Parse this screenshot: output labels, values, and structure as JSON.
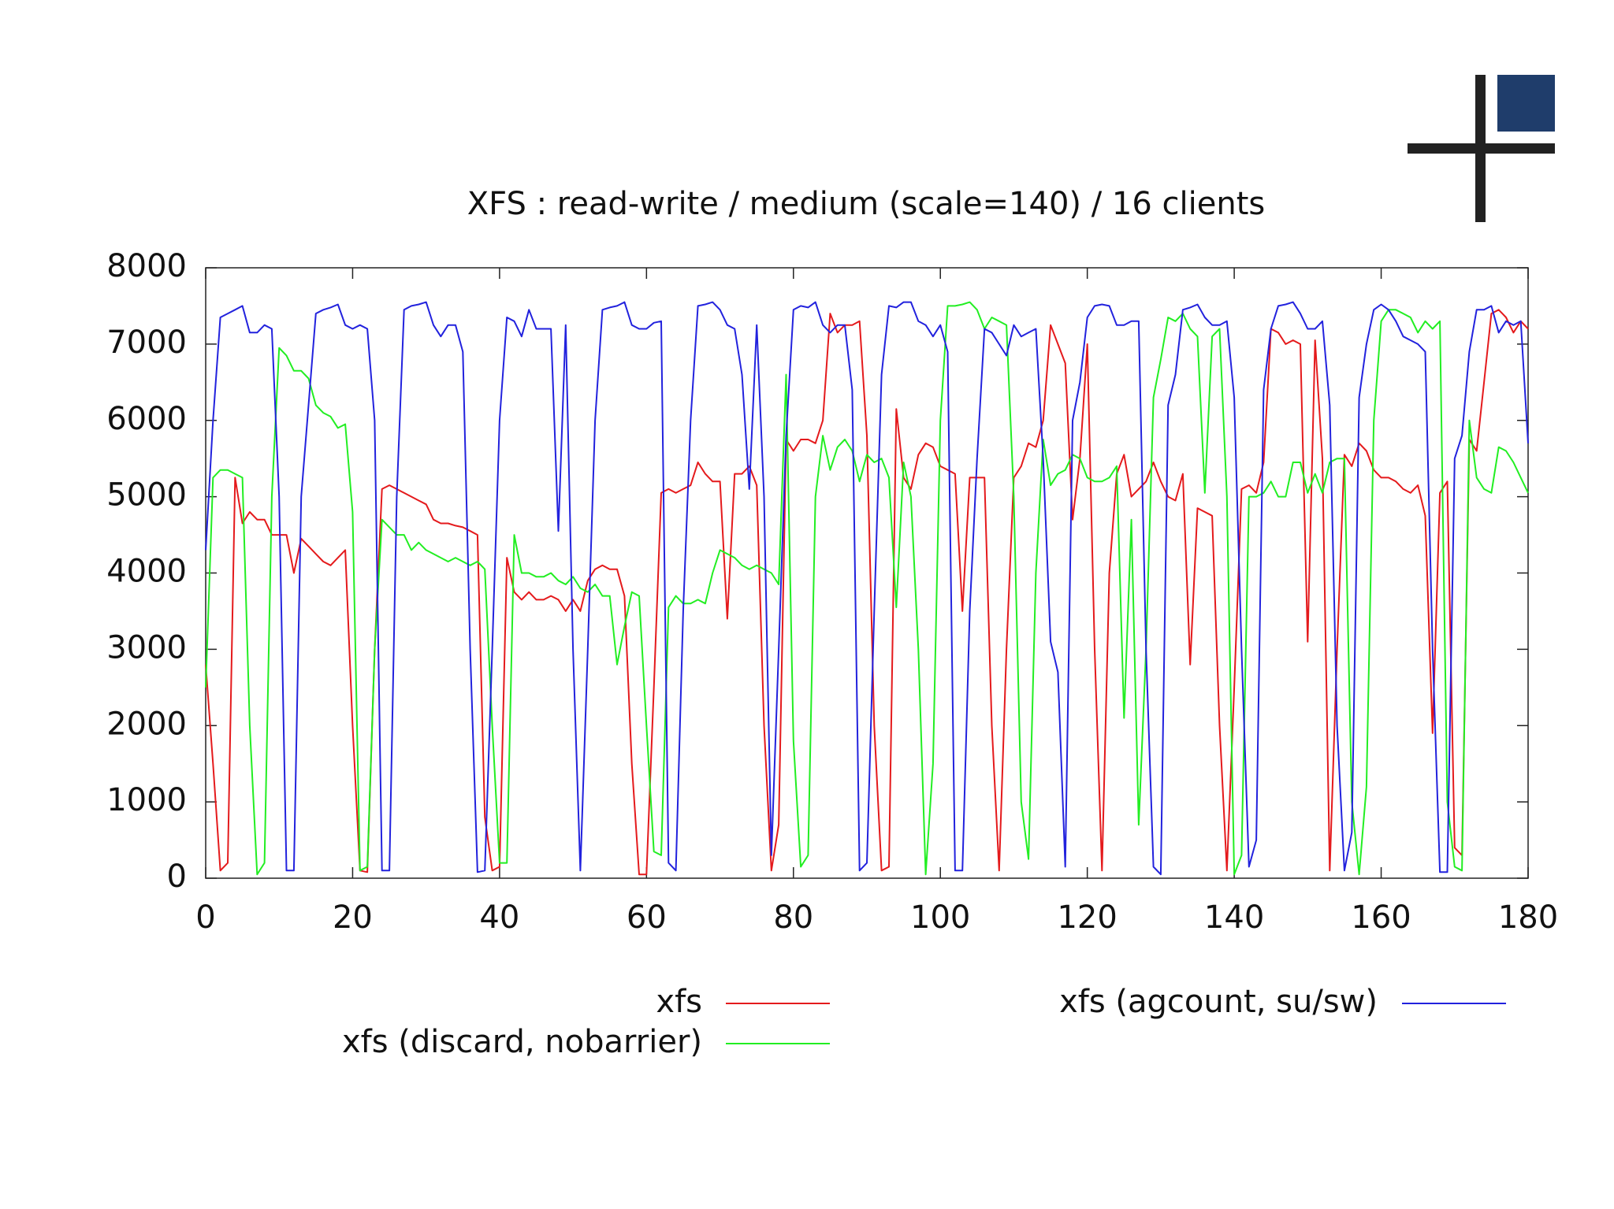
{
  "chart_data": {
    "type": "line",
    "title": "XFS : read-write / medium (scale=140) / 16 clients",
    "x": [
      0,
      1,
      2,
      3,
      4,
      5,
      6,
      7,
      8,
      9,
      10,
      11,
      12,
      13,
      14,
      15,
      16,
      17,
      18,
      19,
      20,
      21,
      22,
      23,
      24,
      25,
      26,
      27,
      28,
      29,
      30,
      31,
      32,
      33,
      34,
      35,
      36,
      37,
      38,
      39,
      40,
      41,
      42,
      43,
      44,
      45,
      46,
      47,
      48,
      49,
      50,
      51,
      52,
      53,
      54,
      55,
      56,
      57,
      58,
      59,
      60,
      61,
      62,
      63,
      64,
      65,
      66,
      67,
      68,
      69,
      70,
      71,
      72,
      73,
      74,
      75,
      76,
      77,
      78,
      79,
      80,
      81,
      82,
      83,
      84,
      85,
      86,
      87,
      88,
      89,
      90,
      91,
      92,
      93,
      94,
      95,
      96,
      97,
      98,
      99,
      100,
      101,
      102,
      103,
      104,
      105,
      106,
      107,
      108,
      109,
      110,
      111,
      112,
      113,
      114,
      115,
      116,
      117,
      118,
      119,
      120,
      121,
      122,
      123,
      124,
      125,
      126,
      127,
      128,
      129,
      130,
      131,
      132,
      133,
      134,
      135,
      136,
      137,
      138,
      139,
      140,
      141,
      142,
      143,
      144,
      145,
      146,
      147,
      148,
      149,
      150,
      151,
      152,
      153,
      154,
      155,
      156,
      157,
      158,
      159,
      160,
      161,
      162,
      163,
      164,
      165,
      166,
      167,
      168,
      169,
      170,
      171,
      172,
      173,
      174,
      175,
      176,
      177,
      178,
      179,
      180
    ],
    "series": [
      {
        "name": "xfs",
        "color": "#e41a1c",
        "values": [
          2800,
          1500,
          100,
          200,
          5250,
          4650,
          4800,
          4700,
          4700,
          4500,
          4500,
          4500,
          4000,
          4450,
          4350,
          4250,
          4150,
          4100,
          4200,
          4300,
          2000,
          100,
          80,
          3000,
          5100,
          5150,
          5100,
          5050,
          5000,
          4950,
          4900,
          4700,
          4650,
          4650,
          4620,
          4600,
          4550,
          4500,
          800,
          100,
          150,
          4200,
          3750,
          3650,
          3750,
          3650,
          3650,
          3700,
          3650,
          3500,
          3650,
          3500,
          3900,
          4050,
          4100,
          4050,
          4050,
          3700,
          1500,
          50,
          50,
          2500,
          5050,
          5100,
          5050,
          5100,
          5150,
          5450,
          5300,
          5200,
          5200,
          3400,
          5300,
          5300,
          5400,
          5150,
          2000,
          100,
          700,
          5750,
          5600,
          5750,
          5750,
          5700,
          6000,
          7400,
          7150,
          7250,
          7250,
          7300,
          5800,
          2000,
          100,
          150,
          6150,
          5250,
          5100,
          5550,
          5700,
          5650,
          5400,
          5350,
          5300,
          3500,
          5250,
          5250,
          5250,
          2000,
          100,
          3000,
          5250,
          5400,
          5700,
          5650,
          6000,
          7250,
          7000,
          6750,
          4700,
          5500,
          7000,
          3000,
          100,
          4000,
          5300,
          5550,
          5000,
          5100,
          5200,
          5450,
          5200,
          5000,
          4950,
          5300,
          2800,
          4850,
          4800,
          4750,
          2000,
          100,
          2500,
          5100,
          5150,
          5050,
          5450,
          7200,
          7150,
          7000,
          7050,
          7000,
          3100,
          7050,
          5500,
          100,
          3000,
          5550,
          5400,
          5700,
          5600,
          5350,
          5250,
          5250,
          5200,
          5100,
          5050,
          5150,
          4750,
          1900,
          5050,
          5200,
          400,
          300,
          5750,
          5600,
          6500,
          7400,
          7450,
          7350,
          7150,
          7300,
          7200
        ]
      },
      {
        "name": "xfs (discard, nobarrier)",
        "color": "#22ee22",
        "values": [
          2500,
          5250,
          5350,
          5350,
          5300,
          5250,
          2000,
          50,
          200,
          5000,
          6950,
          6850,
          6650,
          6650,
          6550,
          6200,
          6100,
          6050,
          5900,
          5950,
          4800,
          100,
          150,
          3000,
          4700,
          4600,
          4500,
          4500,
          4300,
          4400,
          4300,
          4250,
          4200,
          4150,
          4200,
          4150,
          4100,
          4150,
          4050,
          2000,
          200,
          200,
          4500,
          4000,
          4000,
          3950,
          3950,
          4000,
          3900,
          3850,
          3950,
          3800,
          3750,
          3850,
          3700,
          3700,
          2800,
          3300,
          3750,
          3700,
          2000,
          350,
          300,
          3550,
          3700,
          3600,
          3600,
          3650,
          3600,
          4000,
          4300,
          4250,
          4200,
          4100,
          4050,
          4100,
          4050,
          4000,
          3850,
          6600,
          1800,
          150,
          300,
          5000,
          5800,
          5350,
          5650,
          5750,
          5600,
          5200,
          5550,
          5450,
          5500,
          5250,
          3550,
          5450,
          5000,
          3000,
          50,
          1500,
          6000,
          7500,
          7500,
          7520,
          7550,
          7450,
          7200,
          7350,
          7300,
          7250,
          5000,
          1000,
          250,
          4000,
          5750,
          5150,
          5300,
          5350,
          5550,
          5500,
          5250,
          5200,
          5200,
          5250,
          5400,
          2100,
          4700,
          700,
          3000,
          6300,
          6800,
          7350,
          7300,
          7400,
          7200,
          7100,
          5050,
          7100,
          7200,
          5000,
          50,
          300,
          5000,
          5000,
          5050,
          5200,
          5000,
          5000,
          5450,
          5450,
          5050,
          5300,
          5050,
          5450,
          5500,
          5500,
          1000,
          50,
          1200,
          6000,
          7300,
          7450,
          7450,
          7400,
          7350,
          7150,
          7300,
          7200,
          7300,
          1000,
          150,
          100,
          6000,
          5250,
          5100,
          5050,
          5650,
          5600,
          5450,
          5250,
          5050
        ]
      },
      {
        "name": "xfs (agcount, su/sw)",
        "color": "#2222dd",
        "values": [
          4300,
          6000,
          7350,
          7400,
          7450,
          7500,
          7150,
          7150,
          7250,
          7200,
          5000,
          100,
          100,
          5000,
          6200,
          7400,
          7450,
          7480,
          7520,
          7250,
          7200,
          7250,
          7200,
          6000,
          100,
          100,
          5000,
          7450,
          7500,
          7520,
          7550,
          7250,
          7100,
          7250,
          7250,
          6900,
          3000,
          80,
          100,
          3000,
          6000,
          7350,
          7300,
          7100,
          7450,
          7200,
          7200,
          7200,
          4550,
          7250,
          3000,
          100,
          3000,
          6000,
          7450,
          7480,
          7500,
          7550,
          7250,
          7200,
          7200,
          7280,
          7300,
          200,
          100,
          3500,
          6000,
          7500,
          7520,
          7550,
          7450,
          7250,
          7200,
          6600,
          5100,
          7250,
          5000,
          300,
          3000,
          5800,
          7450,
          7500,
          7480,
          7550,
          7250,
          7150,
          7250,
          7250,
          6400,
          100,
          200,
          3500,
          6600,
          7500,
          7480,
          7550,
          7550,
          7300,
          7250,
          7100,
          7250,
          6900,
          100,
          100,
          3500,
          5500,
          7200,
          7150,
          7000,
          6850,
          7250,
          7100,
          7150,
          7200,
          5500,
          3100,
          2700,
          150,
          6000,
          6500,
          7350,
          7500,
          7520,
          7500,
          7250,
          7250,
          7300,
          7300,
          3000,
          150,
          50,
          6200,
          6600,
          7450,
          7480,
          7520,
          7350,
          7250,
          7250,
          7300,
          6300,
          3000,
          150,
          500,
          6400,
          7200,
          7500,
          7520,
          7550,
          7400,
          7200,
          7200,
          7300,
          6200,
          2000,
          100,
          600,
          6300,
          7000,
          7450,
          7520,
          7450,
          7300,
          7100,
          7050,
          7000,
          6900,
          3000,
          80,
          80,
          5500,
          5800,
          6900,
          7450,
          7450,
          7500,
          7150,
          7300,
          7250,
          7300,
          5700
        ]
      }
    ],
    "xlim": [
      0,
      180
    ],
    "xticks": [
      0,
      20,
      40,
      60,
      80,
      100,
      120,
      140,
      160,
      180
    ],
    "ylim": [
      0,
      8000
    ],
    "yticks": [
      0,
      1000,
      2000,
      3000,
      4000,
      5000,
      6000,
      7000,
      8000
    ]
  }
}
